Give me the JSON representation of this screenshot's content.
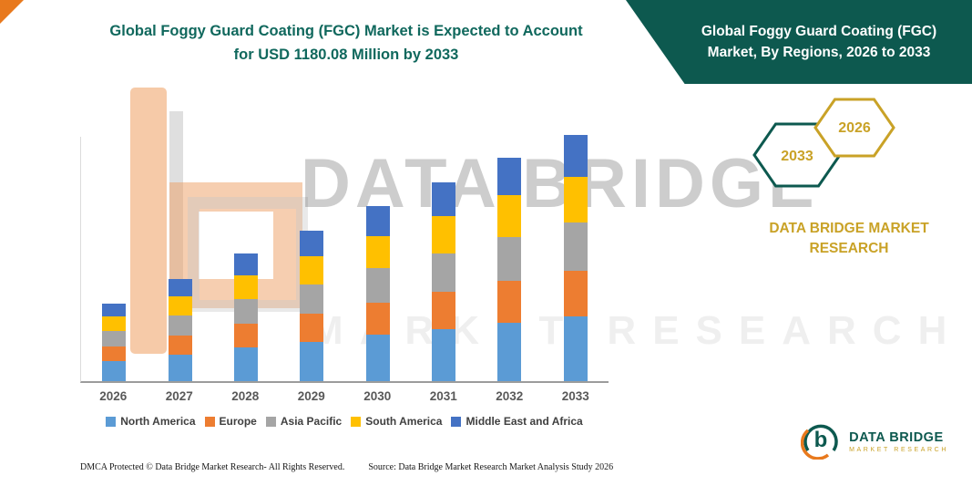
{
  "page": {
    "left_title": "Global Foggy Guard Coating (FGC) Market is Expected to Account for USD 1180.08 Million by 2033",
    "banner_title": "Global Foggy Guard Coating (FGC) Market, By Regions, 2026 to 2033"
  },
  "hexagons": {
    "left_year": "2033",
    "right_year": "2026"
  },
  "brand_text": "DATA BRIDGE MARKET RESEARCH",
  "watermark": {
    "line1": "DATA BRIDGE",
    "line2": "MARKET RESEARCH"
  },
  "logo": {
    "title": "DATA BRIDGE",
    "subtitle": "MARKET RESEARCH"
  },
  "footer": {
    "dmca": "DMCA Protected © Data Bridge Market Research-  All Rights Reserved.",
    "source": "Source: Data Bridge Market Research  Market Analysis Study 2026"
  },
  "colors": {
    "teal": "#0D594F",
    "title_teal": "#10685D",
    "gold": "#C9A227",
    "orange_accent": "#E8791D"
  },
  "chart_data": {
    "type": "bar",
    "stacked": true,
    "title": "Global Foggy Guard Coating (FGC) Market, By Regions, 2026 to 2033",
    "unit": "USD Million",
    "categories": [
      "2026",
      "2027",
      "2028",
      "2029",
      "2030",
      "2031",
      "2032",
      "2033"
    ],
    "series": [
      {
        "name": "North America",
        "color": "#5B9BD5",
        "values": [
          98,
          129,
          161,
          190,
          221,
          251,
          282,
          310
        ]
      },
      {
        "name": "Europe",
        "color": "#ED7D31",
        "values": [
          69,
          91,
          114,
          134,
          156,
          178,
          200,
          220
        ]
      },
      {
        "name": "Asia Pacific",
        "color": "#A5A5A5",
        "values": [
          72,
          95,
          119,
          140,
          163,
          185,
          208,
          230
        ]
      },
      {
        "name": "South America",
        "color": "#FFC000",
        "values": [
          70,
          92,
          114,
          135,
          157,
          178,
          200,
          220
        ]
      },
      {
        "name": "Middle East and Africa",
        "color": "#4472C4",
        "values": [
          63,
          83,
          104,
          122,
          142,
          161,
          181,
          200
        ]
      }
    ],
    "legend_position": "bottom",
    "grid": false,
    "ylim": [
      0,
      1200
    ]
  }
}
